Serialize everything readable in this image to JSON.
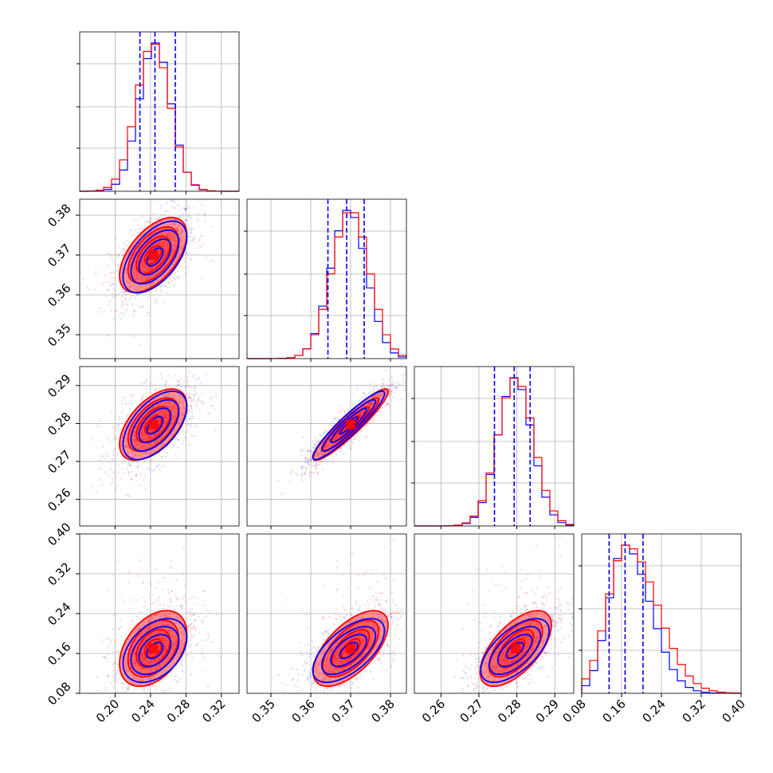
{
  "chart_data": {
    "type": "scatter",
    "title": "",
    "grid": true,
    "colors": {
      "blue": "#0000ff",
      "red": "#ff0000"
    },
    "series": [
      {
        "color": "#0000ff"
      },
      {
        "color": "#ff0000"
      }
    ],
    "parameters": [
      {
        "index": 0,
        "range": [
          0.16,
          0.34
        ],
        "ticks": [
          0.2,
          0.24,
          0.28,
          0.32
        ],
        "tick_labels": [
          "0.20",
          "0.24",
          "0.28",
          "0.32"
        ],
        "blue": {
          "mean": 0.245,
          "sd": 0.018
        },
        "red": {
          "mean": 0.243,
          "sd": 0.019
        },
        "quantiles_dashed": [
          0.228,
          0.245,
          0.268
        ]
      },
      {
        "index": 1,
        "range": [
          0.344,
          0.384
        ],
        "ticks": [
          0.35,
          0.36,
          0.37,
          0.38
        ],
        "tick_labels": [
          "0.35",
          "0.36",
          "0.37",
          "0.38"
        ],
        "blue": {
          "mean": 0.3695,
          "sd": 0.0045
        },
        "red": {
          "mean": 0.37,
          "sd": 0.0047
        },
        "quantiles_dashed": [
          0.3643,
          0.369,
          0.3734
        ]
      },
      {
        "index": 2,
        "range": [
          0.253,
          0.295
        ],
        "ticks": [
          0.26,
          0.27,
          0.28,
          0.29
        ],
        "tick_labels": [
          "0.26",
          "0.27",
          "0.28",
          "0.29"
        ],
        "blue": {
          "mean": 0.2795,
          "sd": 0.0045
        },
        "red": {
          "mean": 0.2797,
          "sd": 0.0047
        },
        "quantiles_dashed": [
          0.2741,
          0.2793,
          0.2835
        ]
      },
      {
        "index": 3,
        "range": [
          0.08,
          0.4
        ],
        "ticks": [
          0.08,
          0.16,
          0.24,
          0.32,
          0.4
        ],
        "tick_labels": [
          "0.08",
          "0.16",
          "0.24",
          "0.32",
          "0.40"
        ],
        "blue": {
          "mean": 0.166,
          "sd": 0.032
        },
        "red": {
          "mean": 0.17,
          "sd": 0.038
        },
        "quantiles_dashed": [
          0.135,
          0.167,
          0.203
        ]
      }
    ],
    "pairs": [
      {
        "row": 1,
        "col": 0,
        "rho_blue": 0.55,
        "rho_red": 0.55
      },
      {
        "row": 2,
        "col": 0,
        "rho_blue": 0.55,
        "rho_red": 0.55
      },
      {
        "row": 2,
        "col": 1,
        "rho_blue": 0.93,
        "rho_red": 0.93
      },
      {
        "row": 3,
        "col": 0,
        "rho_blue": 0.4,
        "rho_red": 0.4
      },
      {
        "row": 3,
        "col": 1,
        "rho_blue": 0.62,
        "rho_red": 0.62
      },
      {
        "row": 3,
        "col": 2,
        "rho_blue": 0.62,
        "rho_red": 0.62
      }
    ]
  }
}
